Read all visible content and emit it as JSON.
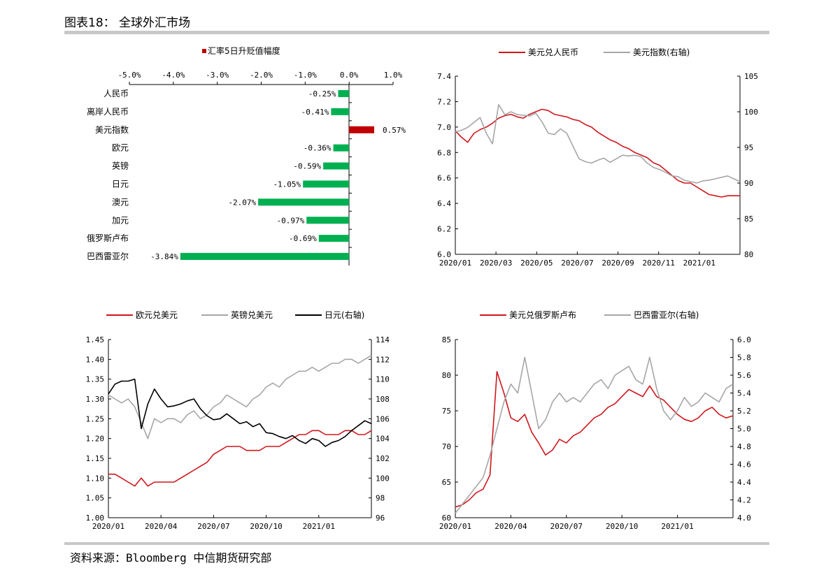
{
  "title": "图表18： 全球外汇市场",
  "source": "资料来源：Bloomberg 中信期货研究部",
  "colors": {
    "red": "#d0161c",
    "darkred": "#c00000",
    "green": "#00b050",
    "gray": "#a6a6a6",
    "black": "#000000"
  },
  "chart_data": [
    {
      "type": "bar",
      "orientation": "horizontal",
      "legend": "汇率5日升贬值幅度",
      "categories": [
        "人民币",
        "离岸人民币",
        "美元指数",
        "欧元",
        "英镑",
        "日元",
        "澳元",
        "加元",
        "俄罗斯卢布",
        "巴西雷亚尔"
      ],
      "values": [
        -0.25,
        -0.41,
        0.57,
        -0.36,
        -0.59,
        -1.05,
        -2.07,
        -0.97,
        -0.69,
        -3.84
      ],
      "value_labels": [
        "-0.25%",
        "-0.41%",
        "0.57%",
        "-0.36%",
        "-0.59%",
        "-1.05%",
        "-2.07%",
        "-0.97%",
        "-0.69%",
        "-3.84%"
      ],
      "xlim": [
        -5.0,
        1.0
      ],
      "xticks": [
        "-5.0%",
        "-4.0%",
        "-3.0%",
        "-2.0%",
        "-1.0%",
        "0.0%",
        "1.0%"
      ]
    },
    {
      "type": "line",
      "xticks": [
        "2020/01",
        "2020/03",
        "2020/05",
        "2020/07",
        "2020/09",
        "2020/11",
        "2021/01"
      ],
      "ylim": [
        6.0,
        7.4
      ],
      "yticks": [
        "6.0",
        "6.2",
        "6.4",
        "6.6",
        "6.8",
        "7.0",
        "7.2",
        "7.4"
      ],
      "y2lim": [
        80,
        105
      ],
      "y2ticks": [
        "80",
        "85",
        "90",
        "95",
        "100",
        "105"
      ],
      "series": [
        {
          "name": "美元兑人民币",
          "axis": "left",
          "color": "#d0161c",
          "values": [
            6.97,
            6.92,
            6.88,
            6.95,
            6.98,
            7.0,
            7.03,
            7.07,
            7.09,
            7.1,
            7.08,
            7.07,
            7.1,
            7.12,
            7.14,
            7.13,
            7.1,
            7.09,
            7.08,
            7.06,
            7.05,
            7.02,
            7.0,
            6.96,
            6.93,
            6.9,
            6.88,
            6.85,
            6.83,
            6.8,
            6.78,
            6.76,
            6.72,
            6.7,
            6.66,
            6.62,
            6.58,
            6.56,
            6.56,
            6.53,
            6.5,
            6.47,
            6.46,
            6.45,
            6.46,
            6.46,
            6.46
          ]
        },
        {
          "name": "美元指数(右轴)",
          "axis": "right",
          "color": "#a6a6a6",
          "values": [
            97.2,
            97.4,
            97.8,
            98.5,
            99.2,
            97.0,
            95.5,
            101.0,
            99.6,
            100.0,
            99.6,
            99.5,
            99.4,
            99.8,
            98.6,
            97.0,
            96.8,
            97.6,
            97.0,
            95.2,
            93.4,
            93.0,
            92.8,
            93.2,
            93.5,
            92.9,
            93.4,
            93.9,
            93.8,
            93.9,
            93.7,
            92.8,
            92.2,
            91.9,
            91.5,
            91.0,
            90.9,
            90.4,
            90.2,
            90.0,
            90.3,
            90.4,
            90.6,
            90.8,
            91.0,
            90.6,
            90.2
          ]
        }
      ]
    },
    {
      "type": "line",
      "xticks": [
        "2020/01",
        "2020/04",
        "2020/07",
        "2020/10",
        "2021/01"
      ],
      "ylim": [
        1.0,
        1.45
      ],
      "yticks": [
        "1.00",
        "1.05",
        "1.10",
        "1.15",
        "1.20",
        "1.25",
        "1.30",
        "1.35",
        "1.40",
        "1.45"
      ],
      "y2lim": [
        96,
        114
      ],
      "y2ticks": [
        "96",
        "98",
        "100",
        "102",
        "104",
        "106",
        "108",
        "110",
        "112",
        "114"
      ],
      "series": [
        {
          "name": "欧元兑美元",
          "axis": "left",
          "color": "#d0161c",
          "values": [
            1.11,
            1.11,
            1.1,
            1.09,
            1.08,
            1.1,
            1.08,
            1.09,
            1.09,
            1.09,
            1.09,
            1.1,
            1.11,
            1.12,
            1.13,
            1.14,
            1.16,
            1.17,
            1.18,
            1.18,
            1.18,
            1.17,
            1.17,
            1.17,
            1.18,
            1.18,
            1.18,
            1.19,
            1.2,
            1.21,
            1.21,
            1.22,
            1.22,
            1.21,
            1.21,
            1.21,
            1.22,
            1.22,
            1.21,
            1.21,
            1.22
          ]
        },
        {
          "name": "英镑兑美元",
          "axis": "left",
          "color": "#a6a6a6",
          "values": [
            1.31,
            1.3,
            1.29,
            1.3,
            1.28,
            1.24,
            1.2,
            1.25,
            1.24,
            1.25,
            1.25,
            1.24,
            1.26,
            1.27,
            1.25,
            1.26,
            1.28,
            1.29,
            1.31,
            1.3,
            1.29,
            1.28,
            1.3,
            1.31,
            1.33,
            1.34,
            1.33,
            1.35,
            1.36,
            1.37,
            1.37,
            1.38,
            1.37,
            1.38,
            1.39,
            1.39,
            1.4,
            1.4,
            1.39,
            1.4,
            1.41
          ]
        },
        {
          "name": "日元(右轴)",
          "axis": "right",
          "color": "#000000",
          "values": [
            108.5,
            109.5,
            109.8,
            109.8,
            110.0,
            105.0,
            107.5,
            109.0,
            108.0,
            107.2,
            107.3,
            107.5,
            107.8,
            108.0,
            107.0,
            106.3,
            105.9,
            106.0,
            106.5,
            106.0,
            105.5,
            105.7,
            105.2,
            105.5,
            104.6,
            104.5,
            104.2,
            104.0,
            104.3,
            103.8,
            103.5,
            104.0,
            103.8,
            103.2,
            103.6,
            103.8,
            104.2,
            104.8,
            105.3,
            105.8,
            105.5
          ]
        }
      ]
    },
    {
      "type": "line",
      "xticks": [
        "2020/01",
        "2020/04",
        "2020/07",
        "2020/10",
        "2021/01"
      ],
      "ylim": [
        60,
        85
      ],
      "yticks": [
        "60",
        "65",
        "70",
        "75",
        "80",
        "85"
      ],
      "y2lim": [
        4.0,
        6.0
      ],
      "y2ticks": [
        "4.0",
        "4.2",
        "4.4",
        "4.6",
        "4.8",
        "5.0",
        "5.2",
        "5.4",
        "5.6",
        "5.8",
        "6.0"
      ],
      "series": [
        {
          "name": "美元兑俄罗斯卢布",
          "axis": "left",
          "color": "#d0161c",
          "values": [
            61.5,
            61.8,
            62.5,
            63.5,
            64.0,
            66.0,
            80.5,
            77.5,
            74.0,
            73.5,
            74.5,
            72.0,
            70.5,
            68.8,
            69.5,
            71.0,
            70.5,
            71.5,
            72.0,
            73.0,
            74.0,
            74.5,
            75.5,
            76.0,
            77.0,
            78.0,
            77.5,
            77.0,
            78.5,
            77.0,
            76.5,
            75.5,
            74.5,
            73.8,
            73.5,
            74.0,
            75.0,
            75.5,
            74.5,
            74.0,
            74.3
          ]
        },
        {
          "name": "巴西雷亚尔(右轴)",
          "axis": "right",
          "color": "#a6a6a6",
          "values": [
            4.05,
            4.15,
            4.25,
            4.35,
            4.45,
            4.7,
            5.0,
            5.3,
            5.5,
            5.4,
            5.8,
            5.4,
            5.0,
            5.1,
            5.3,
            5.4,
            5.3,
            5.35,
            5.3,
            5.4,
            5.5,
            5.55,
            5.45,
            5.6,
            5.65,
            5.7,
            5.55,
            5.5,
            5.8,
            5.45,
            5.2,
            5.1,
            5.2,
            5.35,
            5.25,
            5.3,
            5.4,
            5.35,
            5.3,
            5.45,
            5.5
          ]
        }
      ]
    }
  ]
}
